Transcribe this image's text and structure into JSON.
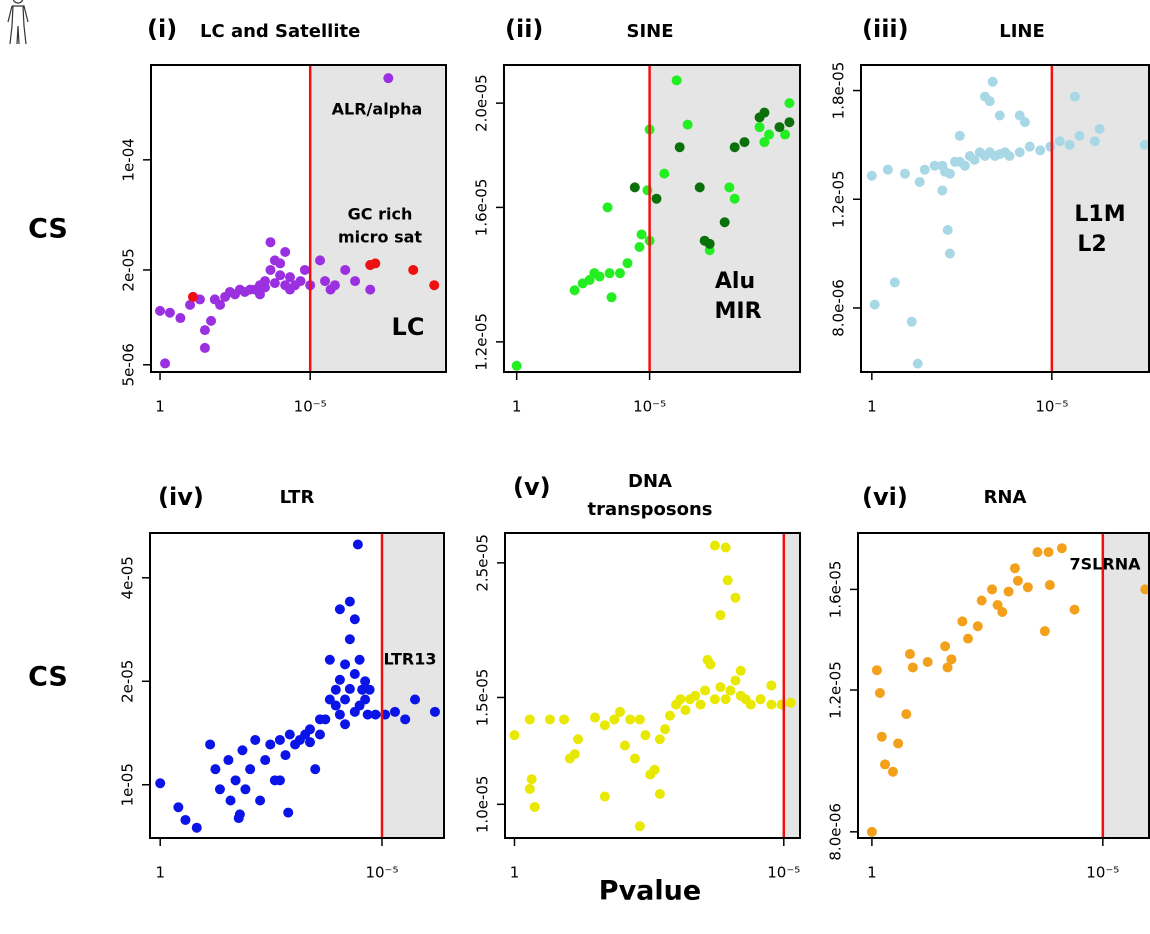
{
  "row_labels": [
    "CS",
    "CS"
  ],
  "xlabel": "Pvalue",
  "chart_data": [
    {
      "type": "scatter",
      "label": "(i)",
      "title": [
        "LC and Satellite"
      ],
      "xlog": true,
      "ylog": true,
      "xlim": [
        2,
        3e-10
      ],
      "xticks": [
        1,
        {
          "value": 1e-05,
          "label": "10⁻⁵"
        }
      ],
      "ylim": [
        4.5e-06,
        0.0004
      ],
      "yticks": [
        {
          "value": 5e-06,
          "label": "5e-06"
        },
        {
          "value": 2e-05,
          "label": "2e-05"
        },
        {
          "value": 0.0001,
          "label": "1e-04"
        }
      ],
      "threshold": 1e-05,
      "threshold_color": "#ee1111",
      "shade_color": "#e5e5e5",
      "annotations": [
        "ALR/alpha",
        "GC rich",
        "micro sat",
        "LC"
      ],
      "series": [
        {
          "color": "#9b30e0",
          "x": [
            1,
            0.68,
            0.47,
            0.21,
            0.1,
            0.047,
            0.032,
            0.032,
            0.015,
            0.0068,
            0.0032,
            0.0015,
            0.00068,
            0.00047,
            0.00032,
            0.00021,
            0.00021,
            0.00015,
            0.0001,
            6.8e-05,
            4.7e-05,
            2.1e-05,
            1.5e-05,
            4.7e-06,
            2.1e-06,
            6.8e-07,
            1e-07,
            1e-07,
            2.5e-08,
            0.0047,
            0.0022,
            0.001,
            0.00047,
            0.00032,
            0.00015,
            0.0001,
            6.8e-05,
            4.7e-05,
            3.2e-05,
            1e-05,
            3.2e-06,
            1.5e-06,
            3.2e-07,
            0.01,
            0.02
          ],
          "values": [
            1.1e-05,
            5.1e-06,
            1.07e-05,
            9.9e-06,
            1.2e-05,
            1.3e-05,
            8.3e-06,
            6.4e-06,
            1.3e-05,
            1.35e-05,
            1.4e-05,
            1.45e-05,
            1.5e-05,
            1.6e-05,
            1.7e-05,
            2e-05,
            3e-05,
            2.3e-05,
            1.85e-05,
            1.6e-05,
            1.5e-05,
            1.7e-05,
            2e-05,
            2.3e-05,
            1.5e-05,
            2e-05,
            1.5e-05,
            2.15e-05,
            0.00033,
            1.45e-05,
            1.5e-05,
            1.5e-05,
            1.4e-05,
            1.55e-05,
            1.65e-05,
            2.2e-05,
            2.6e-05,
            1.8e-05,
            1.6e-05,
            1.6e-05,
            1.7e-05,
            1.6e-05,
            1.7e-05,
            1.2e-05,
            9.5e-06
          ]
        },
        {
          "color": "#ee1111",
          "x": [
            0.08,
            1e-07,
            6.8e-08,
            3.7e-09,
            7.4e-10
          ],
          "values": [
            1.35e-05,
            2.15e-05,
            2.2e-05,
            2e-05,
            1.6e-05
          ]
        }
      ]
    },
    {
      "type": "scatter",
      "label": "(ii)",
      "title": [
        "SINE"
      ],
      "xlog": true,
      "ylog": true,
      "xlim": [
        3,
        2.2e-11
      ],
      "xticks": [
        1,
        {
          "value": 1e-05,
          "label": "10⁻⁵"
        }
      ],
      "ylim": [
        1.125e-05,
        2.17e-05
      ],
      "yticks": [
        {
          "value": 1.2e-05,
          "label": "1.2e-05"
        },
        {
          "value": 1.6e-05,
          "label": "1.6e-05"
        },
        {
          "value": 2e-05,
          "label": "2.0e-05"
        }
      ],
      "threshold": 1e-05,
      "threshold_color": "#ee1111",
      "shade_color": "#e5e5e5",
      "annotations": [
        "Alu",
        "MIR"
      ],
      "series": [
        {
          "color": "#22ee22",
          "x": [
            1,
            0.0066,
            0.0033,
            0.0018,
            0.0012,
            0.00076,
            0.00032,
            0.00027,
            0.00013,
            6.8e-05,
            0.00038,
            2.4e-05,
            2e-05,
            1.2e-05,
            1e-05,
            1e-05,
            2.8e-06,
            9.6e-07,
            3.7e-07,
            5.5e-08,
            1e-08,
            6.3e-09,
            4.8e-10,
            3.2e-10,
            8e-11,
            5.5e-11,
            7.3e-10
          ],
          "values": [
            1.14e-05,
            1.34e-05,
            1.36e-05,
            1.37e-05,
            1.39e-05,
            1.38e-05,
            1.39e-05,
            1.32e-05,
            1.39e-05,
            1.42e-05,
            1.6e-05,
            1.47e-05,
            1.51e-05,
            1.66e-05,
            1.89e-05,
            1.49e-05,
            1.72e-05,
            2.1e-05,
            1.91e-05,
            1.46e-05,
            1.67e-05,
            1.63e-05,
            1.84e-05,
            1.87e-05,
            1.87e-05,
            2e-05,
            1.9e-05
          ]
        },
        {
          "color": "#0a700a",
          "x": [
            3.6e-05,
            5.5e-06,
            7.4e-07,
            1.3e-07,
            8.5e-08,
            5.5e-08,
            1.5e-08,
            6.3e-09,
            2.7e-09,
            7.3e-10,
            4.8e-10,
            1.3e-10,
            5.5e-11
          ],
          "values": [
            1.67e-05,
            1.63e-05,
            1.82e-05,
            1.67e-05,
            1.49e-05,
            1.48e-05,
            1.55e-05,
            1.82e-05,
            1.84e-05,
            1.94e-05,
            1.96e-05,
            1.9e-05,
            1.92e-05
          ]
        }
      ]
    },
    {
      "type": "scatter",
      "label": "(iii)",
      "title": [
        "LINE"
      ],
      "xlog": true,
      "ylog": true,
      "xlim": [
        2,
        2e-08
      ],
      "xticks": [
        1,
        {
          "value": 1e-05,
          "label": "10⁻⁵"
        }
      ],
      "ylim": [
        6.3e-06,
        1.98e-05
      ],
      "yticks": [
        {
          "value": 8e-06,
          "label": "8.0e-06"
        },
        {
          "value": 1.2e-05,
          "label": "1.2e-05"
        },
        {
          "value": 1.8e-05,
          "label": "1.8e-05"
        }
      ],
      "threshold": 1e-05,
      "threshold_color": "#ee1111",
      "shade_color": "#e5e5e5",
      "annotations": [
        "L1M",
        "L2"
      ],
      "series": [
        {
          "color": "#a8d8e6",
          "x": [
            1,
            0.36,
            0.12,
            0.047,
            0.034,
            0.018,
            0.011,
            0.0093,
            0.0068,
            0.0049,
            0.0036,
            0.0026,
            0.0019,
            0.0014,
            0.001,
            0.00072,
            0.00053,
            0.00038,
            0.00028,
            0.0002,
            0.00015,
            7.8e-05,
            4.1e-05,
            2.1e-05,
            1.1e-05,
            6e-06,
            3.2e-06,
            1.7e-06,
            6.4e-07,
            4.7e-07,
            2.6e-08,
            0.011,
            0.0078,
            0.0068,
            0.23,
            0.83,
            0.078,
            0.053,
            0.00072,
            0.00044,
            0.00053,
            7.8e-05,
            5.6e-05,
            0.00028,
            2.3e-06,
            0.0036
          ],
          "values": [
            1.31e-05,
            1.34e-05,
            1.32e-05,
            1.28e-05,
            1.34e-05,
            1.36e-05,
            1.36e-05,
            1.33e-05,
            1.32e-05,
            1.38e-05,
            1.38e-05,
            1.36e-05,
            1.41e-05,
            1.39e-05,
            1.43e-05,
            1.41e-05,
            1.43e-05,
            1.41e-05,
            1.42e-05,
            1.43e-05,
            1.41e-05,
            1.43e-05,
            1.46e-05,
            1.44e-05,
            1.46e-05,
            1.49e-05,
            1.47e-05,
            1.52e-05,
            1.49e-05,
            1.56e-05,
            1.47e-05,
            1.24e-05,
            1.07e-05,
            9.8e-06,
            8.8e-06,
            8.1e-06,
            7.6e-06,
            6.5e-06,
            1.76e-05,
            1.86e-05,
            1.73e-05,
            1.64e-05,
            1.6e-05,
            1.64e-05,
            1.76e-05,
            1.52e-05
          ]
        }
      ]
    },
    {
      "type": "scatter",
      "label": "(iv)",
      "title": [
        "LTR"
      ],
      "xlog": true,
      "ylog": true,
      "xlim": [
        1.7,
        4e-07
      ],
      "xticks": [
        1,
        {
          "value": 1e-05,
          "label": "10⁻⁵"
        }
      ],
      "ylim": [
        7e-06,
        5.4e-05
      ],
      "yticks": [
        {
          "value": 1e-05,
          "label": "1e-05"
        },
        {
          "value": 2e-05,
          "label": "2e-05"
        },
        {
          "value": 4e-05,
          "label": "4e-05"
        }
      ],
      "threshold": 1e-05,
      "threshold_color": "#ee1111",
      "shade_color": "#e5e5e5",
      "annotations": [
        "LTR13"
      ],
      "series": [
        {
          "color": "#0a14e6",
          "x": [
            1,
            0.39,
            0.27,
            0.15,
            0.075,
            0.057,
            0.045,
            0.029,
            0.026,
            0.02,
            0.017,
            0.014,
            0.012,
            0.0094,
            0.0072,
            0.0056,
            0.0043,
            0.0033,
            0.0026,
            0.002,
            0.0015,
            0.0013,
            0.0012,
            0.00091,
            0.00071,
            0.00054,
            0.00042,
            0.00032,
            0.00025,
            0.00019,
            0.00015,
            0.00011,
            8.9e-05,
            6.8e-05,
            5.3e-05,
            4.1e-05,
            3.2e-05,
            2.4e-05,
            2.1e-05,
            1.9e-05,
            1.4e-05,
            8.5e-06,
            5.1e-06,
            3e-06,
            1.8e-06,
            6.4e-07,
            8.9e-05,
            5.3e-05,
            3.5e-05,
            0.00015,
            6.8e-05,
            4.1e-05,
            2.8e-05,
            0.00025,
            0.00042,
            0.002,
            0.016,
            0.00011,
            8.9e-05,
            6.8e-05,
            5.3e-05,
            4.1e-05,
            3.2e-05,
            2.4e-05
          ],
          "values": [
            1.01e-05,
            8.6e-06,
            7.9e-06,
            7.5e-06,
            1.31e-05,
            1.11e-05,
            9.7e-06,
            1.18e-05,
            9e-06,
            1.03e-05,
            8e-06,
            1.26e-05,
            9.7e-06,
            1.11e-05,
            1.35e-05,
            9e-06,
            1.18e-05,
            1.31e-05,
            1.03e-05,
            1.35e-05,
            1.22e-05,
            8.3e-06,
            1.4e-05,
            1.31e-05,
            1.35e-05,
            1.4e-05,
            1.33e-05,
            1.11e-05,
            1.4e-05,
            1.55e-05,
            1.77e-05,
            1.89e-05,
            2.02e-05,
            2.24e-05,
            2.65e-05,
            3.03e-05,
            2.31e-05,
            1.77e-05,
            1.6e-05,
            1.89e-05,
            1.6e-05,
            1.6e-05,
            1.63e-05,
            1.55e-05,
            1.77e-05,
            1.63e-05,
            3.24e-05,
            3.41e-05,
            5e-05,
            2.31e-05,
            1.77e-05,
            1.63e-05,
            1.89e-05,
            1.55e-05,
            1.45e-05,
            1.03e-05,
            8.2e-06,
            1.7e-05,
            1.6e-05,
            1.5e-05,
            1.9e-05,
            2.1e-05,
            1.7e-05,
            2e-05
          ]
        }
      ]
    },
    {
      "type": "scatter",
      "label": "(v)",
      "title": [
        "DNA",
        "transposons"
      ],
      "xlog": true,
      "ylog": true,
      "xlim": [
        1.5,
        5e-06
      ],
      "xticks": [
        1,
        {
          "value": 1e-05,
          "label": "10⁻⁵"
        }
      ],
      "ylim": [
        8.8e-06,
        2.8e-05
      ],
      "yticks": [
        {
          "value": 1e-05,
          "label": "1.0e-05"
        },
        {
          "value": 1.5e-05,
          "label": "1.5e-05"
        },
        {
          "value": 2.5e-05,
          "label": "2.5e-05"
        }
      ],
      "threshold": 1e-05,
      "threshold_color": "#ee1111",
      "shade_color": "#e5e5e5",
      "annotations": [],
      "series": [
        {
          "color": "#e8e800",
          "x": [
            1,
            0.52,
            0.22,
            0.12,
            0.066,
            0.032,
            0.021,
            0.52,
            0.48,
            0.42,
            0.094,
            0.076,
            0.021,
            0.014,
            0.011,
            0.0071,
            0.0089,
            0.0058,
            0.0047,
            0.0037,
            0.003,
            0.0025,
            0.002,
            0.0016,
            0.002,
            0.0047,
            0.0013,
            0.001,
            0.00083,
            0.00067,
            0.00055,
            0.00044,
            0.00035,
            0.00029,
            0.00023,
            0.00019,
            0.00015,
            0.00012,
            9.8e-05,
            7.9e-05,
            6.3e-05,
            5.1e-05,
            4.1e-05,
            2.7e-05,
            1.7e-05,
            1.1e-05,
            7.4e-06,
            0.00019,
            0.00012,
            0.00011,
            7.9e-05,
            0.00015,
            0.00026,
            6.3e-05,
            1.7e-05
          ],
          "values": [
            1.3e-05,
            1.38e-05,
            1.38e-05,
            1.38e-05,
            1.28e-05,
            1.39e-05,
            1.35e-05,
            1.06e-05,
            1.1e-05,
            9.9e-06,
            1.19e-05,
            1.21e-05,
            1.03e-05,
            1.38e-05,
            1.42e-05,
            1.38e-05,
            1.25e-05,
            1.19e-05,
            1.38e-05,
            1.3e-05,
            1.12e-05,
            1.14e-05,
            1.28e-05,
            1.33e-05,
            1.04e-05,
            9.2e-06,
            1.4e-05,
            1.46e-05,
            1.49e-05,
            1.43e-05,
            1.49e-05,
            1.51e-05,
            1.46e-05,
            1.54e-05,
            1.7e-05,
            1.49e-05,
            1.56e-05,
            1.49e-05,
            1.54e-05,
            1.6e-05,
            1.51e-05,
            1.49e-05,
            1.46e-05,
            1.49e-05,
            1.46e-05,
            1.46e-05,
            1.47e-05,
            2.67e-05,
            2.65e-05,
            2.34e-05,
            2.19e-05,
            2.05e-05,
            1.73e-05,
            1.66e-05,
            1.57e-05
          ]
        }
      ]
    },
    {
      "type": "scatter",
      "label": "(vi)",
      "title": [
        "RNA"
      ],
      "xlog": true,
      "ylog": true,
      "xlim": [
        2,
        1e-06
      ],
      "xticks": [
        1,
        {
          "value": 1e-05,
          "label": "10⁻⁵"
        }
      ],
      "ylim": [
        7.86e-06,
        1.88e-05
      ],
      "yticks": [
        {
          "value": 8e-06,
          "label": "8.0e-06"
        },
        {
          "value": 1.2e-05,
          "label": "1.2e-05"
        },
        {
          "value": 1.6e-05,
          "label": "1.6e-05"
        }
      ],
      "threshold": 1e-05,
      "threshold_color": "#ee1111",
      "shade_color": "#e5e5e5",
      "annotations": [
        "7SLRNA"
      ],
      "series": [
        {
          "color": "#f3a01a",
          "x": [
            1,
            0.78,
            0.67,
            0.61,
            0.52,
            0.35,
            0.27,
            0.18,
            0.15,
            0.13,
            0.062,
            0.026,
            0.023,
            0.019,
            0.011,
            0.0083,
            0.0051,
            0.0042,
            0.0025,
            0.0019,
            0.0015,
            0.0011,
            0.0008,
            0.00069,
            0.00042,
            0.00026,
            0.00018,
            0.00015,
            0.00014,
            7.7e-05,
            4.1e-05,
            1.2e-06
          ],
          "values": [
            8e-06,
            1.27e-05,
            1.19e-05,
            1.05e-05,
            9.7e-06,
            9.5e-06,
            1.03e-05,
            1.12e-05,
            1.33e-05,
            1.28e-05,
            1.3e-05,
            1.36e-05,
            1.28e-05,
            1.31e-05,
            1.46e-05,
            1.39e-05,
            1.44e-05,
            1.55e-05,
            1.6e-05,
            1.53e-05,
            1.5e-05,
            1.59e-05,
            1.7e-05,
            1.64e-05,
            1.61e-05,
            1.78e-05,
            1.42e-05,
            1.78e-05,
            1.62e-05,
            1.8e-05,
            1.51e-05,
            1.6e-05
          ]
        }
      ]
    }
  ]
}
